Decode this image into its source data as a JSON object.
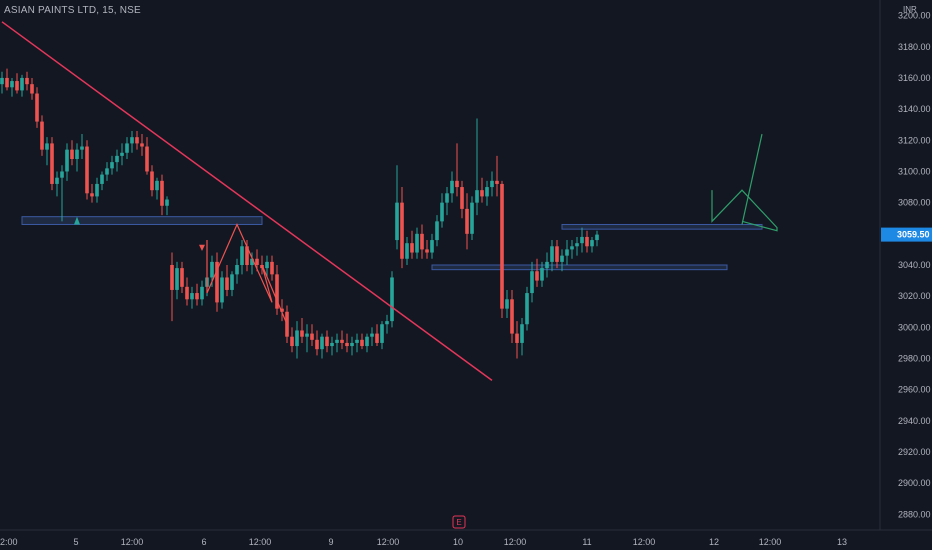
{
  "header": {
    "symbol": "ASIAN PAINTS LTD, 15, NSE",
    "currency": "INR"
  },
  "colors": {
    "background": "#131722",
    "up": "#26a69a",
    "down": "#ef5350",
    "trendline": "#e5365a",
    "zone": "#2a3a5e",
    "green_arrow": "#2e9e6a",
    "price_tag": "#1e88e5"
  },
  "chart_data": {
    "type": "candlestick",
    "y_range": [
      2870,
      3210
    ],
    "y_ticks": [
      3200,
      3180,
      3160,
      3140,
      3120,
      3100,
      3080,
      3060,
      3040,
      3020,
      3000,
      2980,
      2960,
      2940,
      2920,
      2900,
      2880
    ],
    "x_labels": [
      "2:00",
      "5",
      "12:00",
      "6",
      "12:00",
      "9",
      "12:00",
      "10",
      "12:00",
      "11",
      "12:00",
      "12",
      "12:00",
      "13"
    ],
    "last_price": "3059.50",
    "event_marker": "E",
    "candles": [
      {
        "o": 3156,
        "h": 3164,
        "l": 3150,
        "c": 3160
      },
      {
        "o": 3160,
        "h": 3166,
        "l": 3152,
        "c": 3154
      },
      {
        "o": 3154,
        "h": 3160,
        "l": 3148,
        "c": 3158
      },
      {
        "o": 3158,
        "h": 3163,
        "l": 3150,
        "c": 3152
      },
      {
        "o": 3152,
        "h": 3162,
        "l": 3148,
        "c": 3160
      },
      {
        "o": 3160,
        "h": 3164,
        "l": 3152,
        "c": 3156
      },
      {
        "o": 3156,
        "h": 3160,
        "l": 3146,
        "c": 3150
      },
      {
        "o": 3150,
        "h": 3154,
        "l": 3128,
        "c": 3132
      },
      {
        "o": 3132,
        "h": 3136,
        "l": 3110,
        "c": 3114
      },
      {
        "o": 3114,
        "h": 3122,
        "l": 3104,
        "c": 3118
      },
      {
        "o": 3118,
        "h": 3122,
        "l": 3088,
        "c": 3092
      },
      {
        "o": 3092,
        "h": 3100,
        "l": 3084,
        "c": 3096
      },
      {
        "o": 3096,
        "h": 3104,
        "l": 3068,
        "c": 3100
      },
      {
        "o": 3100,
        "h": 3118,
        "l": 3094,
        "c": 3114
      },
      {
        "o": 3114,
        "h": 3120,
        "l": 3104,
        "c": 3108
      },
      {
        "o": 3108,
        "h": 3118,
        "l": 3100,
        "c": 3114
      },
      {
        "o": 3114,
        "h": 3124,
        "l": 3108,
        "c": 3116
      },
      {
        "o": 3116,
        "h": 3120,
        "l": 3082,
        "c": 3086
      },
      {
        "o": 3086,
        "h": 3092,
        "l": 3080,
        "c": 3084
      },
      {
        "o": 3084,
        "h": 3096,
        "l": 3080,
        "c": 3092
      },
      {
        "o": 3092,
        "h": 3100,
        "l": 3088,
        "c": 3098
      },
      {
        "o": 3098,
        "h": 3106,
        "l": 3094,
        "c": 3102
      },
      {
        "o": 3102,
        "h": 3110,
        "l": 3098,
        "c": 3106
      },
      {
        "o": 3106,
        "h": 3114,
        "l": 3100,
        "c": 3110
      },
      {
        "o": 3110,
        "h": 3118,
        "l": 3104,
        "c": 3112
      },
      {
        "o": 3112,
        "h": 3122,
        "l": 3108,
        "c": 3118
      },
      {
        "o": 3118,
        "h": 3126,
        "l": 3112,
        "c": 3122
      },
      {
        "o": 3122,
        "h": 3126,
        "l": 3114,
        "c": 3118
      },
      {
        "o": 3118,
        "h": 3124,
        "l": 3110,
        "c": 3116
      },
      {
        "o": 3116,
        "h": 3122,
        "l": 3098,
        "c": 3100
      },
      {
        "o": 3100,
        "h": 3104,
        "l": 3084,
        "c": 3088
      },
      {
        "o": 3088,
        "h": 3096,
        "l": 3082,
        "c": 3094
      },
      {
        "o": 3094,
        "h": 3098,
        "l": 3072,
        "c": 3078
      },
      {
        "o": 3078,
        "h": 3084,
        "l": 3072,
        "c": 3082
      },
      {
        "o": 3040,
        "h": 3048,
        "l": 3004,
        "c": 3024
      },
      {
        "o": 3024,
        "h": 3042,
        "l": 3018,
        "c": 3038
      },
      {
        "o": 3038,
        "h": 3042,
        "l": 3022,
        "c": 3026
      },
      {
        "o": 3026,
        "h": 3032,
        "l": 3014,
        "c": 3018
      },
      {
        "o": 3018,
        "h": 3026,
        "l": 3012,
        "c": 3022
      },
      {
        "o": 3022,
        "h": 3028,
        "l": 3014,
        "c": 3018
      },
      {
        "o": 3018,
        "h": 3030,
        "l": 3014,
        "c": 3026
      },
      {
        "o": 3026,
        "h": 3036,
        "l": 3020,
        "c": 3032
      },
      {
        "o": 3032,
        "h": 3046,
        "l": 3026,
        "c": 3042
      },
      {
        "o": 3042,
        "h": 3048,
        "l": 3010,
        "c": 3016
      },
      {
        "o": 3016,
        "h": 3036,
        "l": 3012,
        "c": 3032
      },
      {
        "o": 3032,
        "h": 3040,
        "l": 3020,
        "c": 3024
      },
      {
        "o": 3024,
        "h": 3036,
        "l": 3020,
        "c": 3034
      },
      {
        "o": 3034,
        "h": 3044,
        "l": 3028,
        "c": 3040
      },
      {
        "o": 3040,
        "h": 3056,
        "l": 3034,
        "c": 3052
      },
      {
        "o": 3052,
        "h": 3056,
        "l": 3036,
        "c": 3040
      },
      {
        "o": 3040,
        "h": 3048,
        "l": 3034,
        "c": 3044
      },
      {
        "o": 3044,
        "h": 3050,
        "l": 3036,
        "c": 3040
      },
      {
        "o": 3040,
        "h": 3046,
        "l": 3034,
        "c": 3038
      },
      {
        "o": 3038,
        "h": 3046,
        "l": 3032,
        "c": 3042
      },
      {
        "o": 3042,
        "h": 3046,
        "l": 3030,
        "c": 3034
      },
      {
        "o": 3034,
        "h": 3040,
        "l": 3008,
        "c": 3012
      },
      {
        "o": 3012,
        "h": 3018,
        "l": 3004,
        "c": 3010
      },
      {
        "o": 3010,
        "h": 3014,
        "l": 2990,
        "c": 2994
      },
      {
        "o": 2994,
        "h": 3000,
        "l": 2984,
        "c": 2988
      },
      {
        "o": 2988,
        "h": 3004,
        "l": 2980,
        "c": 2998
      },
      {
        "o": 2998,
        "h": 3006,
        "l": 2990,
        "c": 2994
      },
      {
        "o": 2994,
        "h": 3002,
        "l": 2984,
        "c": 2996
      },
      {
        "o": 2996,
        "h": 3002,
        "l": 2988,
        "c": 2992
      },
      {
        "o": 2992,
        "h": 2998,
        "l": 2982,
        "c": 2986
      },
      {
        "o": 2986,
        "h": 2996,
        "l": 2980,
        "c": 2994
      },
      {
        "o": 2994,
        "h": 2998,
        "l": 2984,
        "c": 2988
      },
      {
        "o": 2988,
        "h": 2994,
        "l": 2982,
        "c": 2990
      },
      {
        "o": 2990,
        "h": 2996,
        "l": 2984,
        "c": 2992
      },
      {
        "o": 2992,
        "h": 2998,
        "l": 2986,
        "c": 2990
      },
      {
        "o": 2990,
        "h": 2996,
        "l": 2984,
        "c": 2988
      },
      {
        "o": 2988,
        "h": 2994,
        "l": 2982,
        "c": 2990
      },
      {
        "o": 2990,
        "h": 2996,
        "l": 2984,
        "c": 2992
      },
      {
        "o": 2992,
        "h": 2996,
        "l": 2986,
        "c": 2988
      },
      {
        "o": 2988,
        "h": 2996,
        "l": 2984,
        "c": 2994
      },
      {
        "o": 2994,
        "h": 3000,
        "l": 2988,
        "c": 2996
      },
      {
        "o": 2996,
        "h": 3002,
        "l": 2988,
        "c": 2990
      },
      {
        "o": 2990,
        "h": 3004,
        "l": 2986,
        "c": 3002
      },
      {
        "o": 3002,
        "h": 3008,
        "l": 2996,
        "c": 3004
      },
      {
        "o": 3004,
        "h": 3036,
        "l": 3000,
        "c": 3032
      },
      {
        "o": 3056,
        "h": 3104,
        "l": 3050,
        "c": 3080
      },
      {
        "o": 3080,
        "h": 3090,
        "l": 3038,
        "c": 3044
      },
      {
        "o": 3044,
        "h": 3058,
        "l": 3040,
        "c": 3054
      },
      {
        "o": 3054,
        "h": 3062,
        "l": 3044,
        "c": 3048
      },
      {
        "o": 3048,
        "h": 3064,
        "l": 3044,
        "c": 3060
      },
      {
        "o": 3060,
        "h": 3066,
        "l": 3044,
        "c": 3050
      },
      {
        "o": 3050,
        "h": 3056,
        "l": 3044,
        "c": 3048
      },
      {
        "o": 3048,
        "h": 3060,
        "l": 3044,
        "c": 3056
      },
      {
        "o": 3056,
        "h": 3072,
        "l": 3052,
        "c": 3068
      },
      {
        "o": 3068,
        "h": 3086,
        "l": 3064,
        "c": 3080
      },
      {
        "o": 3080,
        "h": 3090,
        "l": 3072,
        "c": 3086
      },
      {
        "o": 3086,
        "h": 3100,
        "l": 3080,
        "c": 3094
      },
      {
        "o": 3094,
        "h": 3118,
        "l": 3084,
        "c": 3090
      },
      {
        "o": 3090,
        "h": 3094,
        "l": 3070,
        "c": 3076
      },
      {
        "o": 3076,
        "h": 3086,
        "l": 3050,
        "c": 3060
      },
      {
        "o": 3060,
        "h": 3084,
        "l": 3056,
        "c": 3080
      },
      {
        "o": 3080,
        "h": 3134,
        "l": 3072,
        "c": 3088
      },
      {
        "o": 3088,
        "h": 3096,
        "l": 3080,
        "c": 3084
      },
      {
        "o": 3084,
        "h": 3094,
        "l": 3078,
        "c": 3090
      },
      {
        "o": 3090,
        "h": 3100,
        "l": 3084,
        "c": 3094
      },
      {
        "o": 3094,
        "h": 3110,
        "l": 3084,
        "c": 3092
      },
      {
        "o": 3092,
        "h": 3094,
        "l": 3006,
        "c": 3012
      },
      {
        "o": 3012,
        "h": 3024,
        "l": 3006,
        "c": 3018
      },
      {
        "o": 3018,
        "h": 3024,
        "l": 2990,
        "c": 2996
      },
      {
        "o": 2996,
        "h": 3004,
        "l": 2980,
        "c": 2990
      },
      {
        "o": 2990,
        "h": 3006,
        "l": 2982,
        "c": 3002
      },
      {
        "o": 3002,
        "h": 3026,
        "l": 2998,
        "c": 3022
      },
      {
        "o": 3022,
        "h": 3042,
        "l": 3016,
        "c": 3036
      },
      {
        "o": 3036,
        "h": 3044,
        "l": 3026,
        "c": 3030
      },
      {
        "o": 3030,
        "h": 3042,
        "l": 3026,
        "c": 3038
      },
      {
        "o": 3038,
        "h": 3048,
        "l": 3032,
        "c": 3042
      },
      {
        "o": 3042,
        "h": 3056,
        "l": 3036,
        "c": 3052
      },
      {
        "o": 3052,
        "h": 3056,
        "l": 3038,
        "c": 3042
      },
      {
        "o": 3042,
        "h": 3050,
        "l": 3036,
        "c": 3046
      },
      {
        "o": 3046,
        "h": 3056,
        "l": 3040,
        "c": 3050
      },
      {
        "o": 3050,
        "h": 3056,
        "l": 3044,
        "c": 3052
      },
      {
        "o": 3052,
        "h": 3058,
        "l": 3046,
        "c": 3054
      },
      {
        "o": 3054,
        "h": 3064,
        "l": 3048,
        "c": 3058
      },
      {
        "o": 3058,
        "h": 3062,
        "l": 3048,
        "c": 3052
      },
      {
        "o": 3052,
        "h": 3058,
        "l": 3048,
        "c": 3056
      },
      {
        "o": 3056,
        "h": 3062,
        "l": 3052,
        "c": 3059.5
      }
    ],
    "zones": [
      {
        "from_candle": 4,
        "to_candle": 52,
        "top": 3071,
        "bottom": 3066
      },
      {
        "from_candle": 86,
        "to_candle": 145,
        "top": 3040,
        "bottom": 3037
      },
      {
        "from_candle": 112,
        "to_candle": 152,
        "top": 3066,
        "bottom": 3063
      }
    ],
    "trendline": [
      {
        "candle": 0,
        "price": 3196
      },
      {
        "candle": 98,
        "price": 2966
      }
    ],
    "drawn_paths": [
      {
        "color": "down",
        "points": [
          [
            41,
            3056
          ],
          [
            41,
            3022
          ],
          [
            47,
            3066
          ],
          [
            54,
            3016
          ],
          [
            52,
            3040
          ],
          [
            57,
            3002
          ]
        ]
      },
      {
        "color": "green_arrow",
        "points": [
          [
            142,
            3088
          ],
          [
            142,
            3068
          ],
          [
            148,
            3088
          ],
          [
            155,
            3064
          ],
          [
            155,
            3062
          ],
          [
            148,
            3068
          ]
        ]
      },
      {
        "color": "green_arrow",
        "points": [
          [
            148,
            3066
          ],
          [
            152,
            3124
          ]
        ]
      }
    ]
  }
}
